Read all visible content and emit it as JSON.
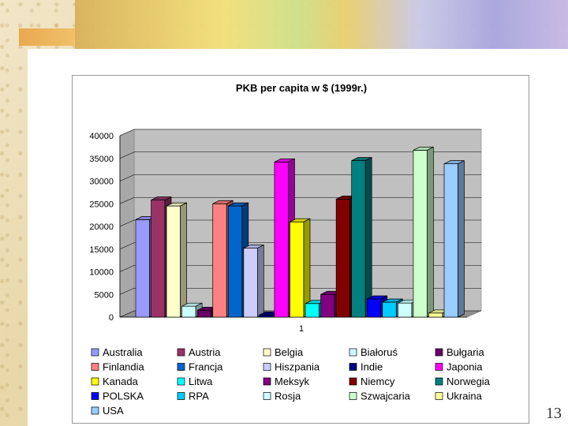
{
  "slide_number": "13",
  "chart_data": {
    "type": "bar",
    "title": "PKB per capita w $ (1999r.)",
    "categories": [
      "1"
    ],
    "ylim": [
      0,
      40000
    ],
    "yticks": [
      "0",
      "5000",
      "10000",
      "15000",
      "20000",
      "25000",
      "30000",
      "35000",
      "40000"
    ],
    "grid": true,
    "three_d": true,
    "legend_position": "bottom",
    "series": [
      {
        "name": "Australia",
        "value": 21500,
        "color": "#9999ff"
      },
      {
        "name": "Austria",
        "value": 25800,
        "color": "#993366"
      },
      {
        "name": "Belgia",
        "value": 24500,
        "color": "#ffffcc"
      },
      {
        "name": "Białoruś",
        "value": 2400,
        "color": "#ccffff"
      },
      {
        "name": "Bułgaria",
        "value": 1500,
        "color": "#660066"
      },
      {
        "name": "Finlandia",
        "value": 25000,
        "color": "#ff8080"
      },
      {
        "name": "Francja",
        "value": 24500,
        "color": "#0066cc"
      },
      {
        "name": "Hiszpania",
        "value": 15200,
        "color": "#ccccff"
      },
      {
        "name": "Indie",
        "value": 450,
        "color": "#000080"
      },
      {
        "name": "Japonia",
        "value": 34200,
        "color": "#ff00ff"
      },
      {
        "name": "Kanada",
        "value": 21000,
        "color": "#ffff00"
      },
      {
        "name": "Litwa",
        "value": 3000,
        "color": "#00ffff"
      },
      {
        "name": "Meksyk",
        "value": 5000,
        "color": "#800080"
      },
      {
        "name": "Niemcy",
        "value": 26000,
        "color": "#800000"
      },
      {
        "name": "Norwegia",
        "value": 34500,
        "color": "#008080"
      },
      {
        "name": "POLSKA",
        "value": 4000,
        "color": "#0000ff"
      },
      {
        "name": "RPA",
        "value": 3300,
        "color": "#00ccff"
      },
      {
        "name": "Rosja",
        "value": 3100,
        "color": "#ccffff"
      },
      {
        "name": "Szwajcaria",
        "value": 36800,
        "color": "#ccffcc"
      },
      {
        "name": "Ukraina",
        "value": 900,
        "color": "#ffff99"
      },
      {
        "name": "USA",
        "value": 33800,
        "color": "#99ccff"
      }
    ]
  }
}
